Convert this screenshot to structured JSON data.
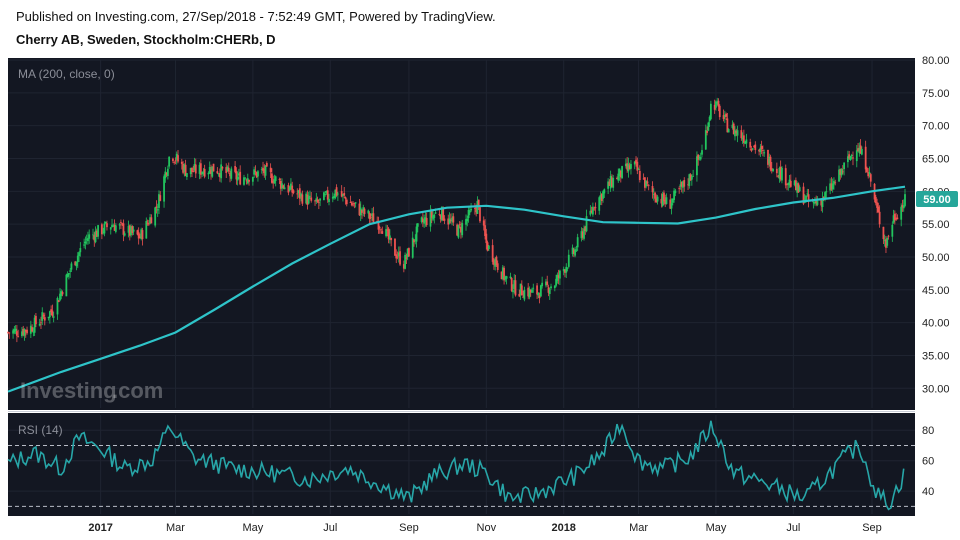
{
  "header": {
    "published": "Published on Investing.com, 27/Sep/2018 - 7:52:49 GMT, Powered by TradingView.",
    "symbol": "Cherry AB, Sweden, Stockholm:CHERb, D"
  },
  "watermark": {
    "brand": "Investing",
    "suffix": ".com"
  },
  "colors": {
    "background": "#131722",
    "up": "#26a69a",
    "up_bright": "#22c55e",
    "down": "#ef5350",
    "ma": "#2ec4c9",
    "rsi": "#27a6a8",
    "grid": "#1f2431"
  },
  "chart_data": [
    {
      "type": "candlestick",
      "indicator_label": "MA (200, close, 0)",
      "current_price_label": "59.00",
      "ylim": [
        27,
        80
      ],
      "yticks": [
        "80.00",
        "75.00",
        "70.00",
        "65.00",
        "60.00",
        "55.00",
        "50.00",
        "45.00",
        "40.00",
        "35.00",
        "30.00"
      ],
      "xticks": [
        "2017",
        "Mar",
        "May",
        "Jul",
        "Sep",
        "Nov",
        "2018",
        "Mar",
        "May",
        "Jul",
        "Sep"
      ],
      "close_path": [
        [
          "2016-10-20",
          38.5
        ],
        [
          "2016-11-05",
          39
        ],
        [
          "2016-11-25",
          42
        ],
        [
          "2016-12-10",
          49
        ],
        [
          "2016-12-22",
          53
        ],
        [
          "2017-01-10",
          55
        ],
        [
          "2017-02-01",
          53
        ],
        [
          "2017-02-15",
          58
        ],
        [
          "2017-02-25",
          66
        ],
        [
          "2017-03-10",
          63
        ],
        [
          "2017-04-01",
          63.5
        ],
        [
          "2017-04-20",
          62
        ],
        [
          "2017-05-10",
          63
        ],
        [
          "2017-06-01",
          60
        ],
        [
          "2017-06-20",
          58
        ],
        [
          "2017-07-05",
          60
        ],
        [
          "2017-07-25",
          57
        ],
        [
          "2017-08-10",
          55
        ],
        [
          "2017-08-20",
          51
        ],
        [
          "2017-08-28",
          49
        ],
        [
          "2017-09-10",
          55
        ],
        [
          "2017-09-25",
          57
        ],
        [
          "2017-10-10",
          54
        ],
        [
          "2017-10-25",
          58
        ],
        [
          "2017-11-01",
          52
        ],
        [
          "2017-11-15",
          47
        ],
        [
          "2017-11-25",
          45
        ],
        [
          "2017-12-10",
          44.5
        ],
        [
          "2017-12-25",
          46
        ],
        [
          "2018-01-10",
          51
        ],
        [
          "2018-01-25",
          58
        ],
        [
          "2018-02-10",
          62
        ],
        [
          "2018-02-25",
          64
        ],
        [
          "2018-03-10",
          60
        ],
        [
          "2018-03-25",
          58
        ],
        [
          "2018-04-10",
          62
        ],
        [
          "2018-04-20",
          66
        ],
        [
          "2018-04-28",
          74
        ],
        [
          "2018-05-10",
          70
        ],
        [
          "2018-05-25",
          68
        ],
        [
          "2018-06-10",
          65
        ],
        [
          "2018-06-25",
          62
        ],
        [
          "2018-07-05",
          60
        ],
        [
          "2018-07-15",
          58
        ],
        [
          "2018-07-25",
          59
        ],
        [
          "2018-08-05",
          62
        ],
        [
          "2018-08-20",
          67
        ],
        [
          "2018-08-28",
          64
        ],
        [
          "2018-09-05",
          57
        ],
        [
          "2018-09-12",
          52
        ],
        [
          "2018-09-18",
          56
        ],
        [
          "2018-09-27",
          58.5
        ]
      ],
      "ma200": [
        [
          "2016-10-20",
          29.5
        ],
        [
          "2016-12-01",
          32.5
        ],
        [
          "2017-01-01",
          34.5
        ],
        [
          "2017-02-01",
          36.5
        ],
        [
          "2017-03-01",
          38.5
        ],
        [
          "2017-04-01",
          42
        ],
        [
          "2017-05-01",
          45.5
        ],
        [
          "2017-06-01",
          49
        ],
        [
          "2017-07-01",
          52
        ],
        [
          "2017-08-01",
          55
        ],
        [
          "2017-09-01",
          56.5
        ],
        [
          "2017-10-01",
          57.5
        ],
        [
          "2017-11-01",
          57.8
        ],
        [
          "2017-12-01",
          57.2
        ],
        [
          "2018-01-01",
          56.2
        ],
        [
          "2018-02-01",
          55.3
        ],
        [
          "2018-03-01",
          55.2
        ],
        [
          "2018-04-01",
          55.1
        ],
        [
          "2018-05-01",
          56
        ],
        [
          "2018-06-01",
          57.3
        ],
        [
          "2018-07-01",
          58.3
        ],
        [
          "2018-08-01",
          59
        ],
        [
          "2018-09-01",
          60
        ],
        [
          "2018-09-27",
          60.7
        ]
      ]
    },
    {
      "type": "line",
      "indicator_label": "RSI (14)",
      "ylim": [
        25,
        90
      ],
      "yticks": [
        "80",
        "60",
        "40"
      ],
      "reference_lines": [
        70,
        30
      ],
      "series": [
        [
          "2016-10-20",
          58
        ],
        [
          "2016-11-10",
          65
        ],
        [
          "2016-12-01",
          55
        ],
        [
          "2016-12-15",
          75
        ],
        [
          "2017-01-01",
          68
        ],
        [
          "2017-01-20",
          55
        ],
        [
          "2017-02-10",
          60
        ],
        [
          "2017-02-25",
          82
        ],
        [
          "2017-03-15",
          62
        ],
        [
          "2017-04-15",
          55
        ],
        [
          "2017-05-15",
          52
        ],
        [
          "2017-06-15",
          48
        ],
        [
          "2017-07-15",
          55
        ],
        [
          "2017-08-15",
          42
        ],
        [
          "2017-09-01",
          35
        ],
        [
          "2017-09-20",
          50
        ],
        [
          "2017-10-15",
          58
        ],
        [
          "2017-11-01",
          52
        ],
        [
          "2017-11-20",
          35
        ],
        [
          "2017-12-10",
          38
        ],
        [
          "2018-01-10",
          50
        ],
        [
          "2018-02-01",
          65
        ],
        [
          "2018-02-15",
          85
        ],
        [
          "2018-03-01",
          60
        ],
        [
          "2018-03-20",
          55
        ],
        [
          "2018-04-10",
          62
        ],
        [
          "2018-04-28",
          83
        ],
        [
          "2018-05-15",
          52
        ],
        [
          "2018-06-10",
          45
        ],
        [
          "2018-07-10",
          35
        ],
        [
          "2018-07-25",
          48
        ],
        [
          "2018-08-10",
          62
        ],
        [
          "2018-08-22",
          70
        ],
        [
          "2018-09-05",
          38
        ],
        [
          "2018-09-15",
          32
        ],
        [
          "2018-09-27",
          52
        ]
      ]
    }
  ]
}
